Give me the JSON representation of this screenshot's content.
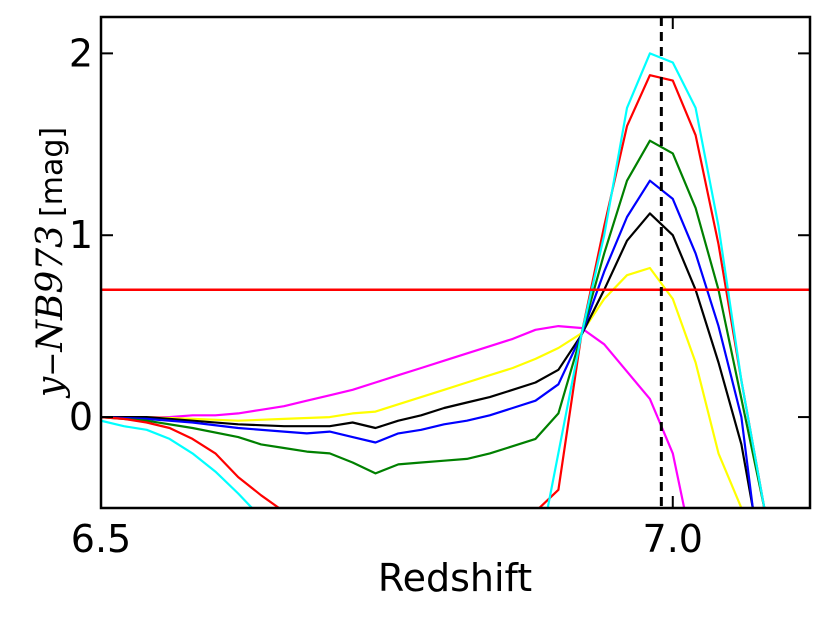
{
  "chart_data": {
    "type": "line",
    "xlabel": "Redshift",
    "ylabel": {
      "var": "y",
      "minus": "−",
      "band": "NB973",
      "unit": "[mag]"
    },
    "xlim": [
      6.5,
      7.12
    ],
    "ylim": [
      -0.5,
      2.2
    ],
    "xticks": [
      6.5,
      7.0
    ],
    "xtick_labels": [
      "6.5",
      "7.0"
    ],
    "yticks": [
      0,
      1,
      2
    ],
    "ytick_labels": [
      "0",
      "1",
      "2"
    ],
    "grid": false,
    "legend": "none",
    "hline": {
      "y": 0.7,
      "color": "#ff0000"
    },
    "vline": {
      "x": 6.99,
      "color": "#000000",
      "style": "dashed"
    },
    "series": [
      {
        "color": "#ff00ff",
        "x": [
          6.5,
          6.52,
          6.54,
          6.56,
          6.58,
          6.6,
          6.62,
          6.64,
          6.66,
          6.68,
          6.7,
          6.72,
          6.74,
          6.76,
          6.78,
          6.8,
          6.82,
          6.84,
          6.86,
          6.88,
          6.9,
          6.92,
          6.94,
          6.96,
          6.98,
          7.0,
          7.01
        ],
        "y": [
          0.0,
          0.0,
          0.0,
          0.0,
          0.01,
          0.01,
          0.02,
          0.04,
          0.06,
          0.09,
          0.12,
          0.15,
          0.19,
          0.23,
          0.27,
          0.31,
          0.35,
          0.39,
          0.43,
          0.48,
          0.5,
          0.49,
          0.4,
          0.25,
          0.1,
          -0.2,
          -0.5
        ]
      },
      {
        "color": "#ffff00",
        "x": [
          6.5,
          6.54,
          6.58,
          6.62,
          6.66,
          6.7,
          6.72,
          6.74,
          6.76,
          6.78,
          6.8,
          6.82,
          6.84,
          6.86,
          6.88,
          6.9,
          6.92,
          6.94,
          6.96,
          6.98,
          7.0,
          7.02,
          7.04,
          7.06
        ],
        "y": [
          0.0,
          0.0,
          -0.01,
          -0.02,
          -0.01,
          0.0,
          0.02,
          0.03,
          0.07,
          0.11,
          0.15,
          0.19,
          0.23,
          0.27,
          0.32,
          0.38,
          0.46,
          0.65,
          0.78,
          0.82,
          0.65,
          0.3,
          -0.2,
          -0.5
        ]
      },
      {
        "color": "#000000",
        "x": [
          6.5,
          6.54,
          6.58,
          6.62,
          6.66,
          6.7,
          6.72,
          6.74,
          6.76,
          6.78,
          6.8,
          6.82,
          6.84,
          6.86,
          6.88,
          6.9,
          6.92,
          6.94,
          6.96,
          6.98,
          7.0,
          7.02,
          7.04,
          7.06,
          7.07
        ],
        "y": [
          0.0,
          0.0,
          -0.02,
          -0.04,
          -0.05,
          -0.05,
          -0.03,
          -0.06,
          -0.02,
          0.01,
          0.05,
          0.08,
          0.11,
          0.15,
          0.19,
          0.26,
          0.45,
          0.7,
          0.97,
          1.12,
          1.0,
          0.7,
          0.3,
          -0.15,
          -0.5
        ]
      },
      {
        "color": "#0000ff",
        "x": [
          6.5,
          6.54,
          6.58,
          6.62,
          6.66,
          6.68,
          6.7,
          6.72,
          6.74,
          6.76,
          6.78,
          6.8,
          6.82,
          6.84,
          6.86,
          6.88,
          6.9,
          6.92,
          6.94,
          6.96,
          6.98,
          7.0,
          7.02,
          7.04,
          7.06,
          7.07
        ],
        "y": [
          0.0,
          -0.01,
          -0.03,
          -0.06,
          -0.08,
          -0.09,
          -0.08,
          -0.11,
          -0.14,
          -0.09,
          -0.07,
          -0.04,
          -0.02,
          0.01,
          0.05,
          0.09,
          0.18,
          0.45,
          0.8,
          1.1,
          1.3,
          1.2,
          0.9,
          0.5,
          0.0,
          -0.5
        ]
      },
      {
        "color": "#008000",
        "x": [
          6.5,
          6.54,
          6.58,
          6.62,
          6.64,
          6.66,
          6.68,
          6.7,
          6.72,
          6.74,
          6.76,
          6.78,
          6.8,
          6.82,
          6.84,
          6.86,
          6.88,
          6.9,
          6.92,
          6.94,
          6.96,
          6.98,
          7.0,
          7.02,
          7.04,
          7.06,
          7.08
        ],
        "y": [
          0.0,
          -0.02,
          -0.06,
          -0.11,
          -0.15,
          -0.17,
          -0.19,
          -0.2,
          -0.25,
          -0.31,
          -0.26,
          -0.25,
          -0.24,
          -0.23,
          -0.2,
          -0.16,
          -0.12,
          0.02,
          0.45,
          0.9,
          1.3,
          1.52,
          1.45,
          1.15,
          0.7,
          0.1,
          -0.5
        ]
      },
      {
        "color": "#ff0000",
        "x": [
          6.5,
          6.52,
          6.54,
          6.56,
          6.58,
          6.6,
          6.62,
          6.64,
          6.66,
          6.88,
          6.9,
          6.92,
          6.94,
          6.96,
          6.98,
          7.0,
          7.02,
          7.04,
          7.06,
          7.08
        ],
        "y": [
          0.0,
          -0.01,
          -0.03,
          -0.06,
          -0.12,
          -0.2,
          -0.33,
          -0.43,
          -0.52,
          -0.52,
          -0.4,
          0.45,
          1.05,
          1.6,
          1.88,
          1.85,
          1.55,
          0.95,
          0.2,
          -0.5
        ]
      },
      {
        "color": "#00ffff",
        "x": [
          6.5,
          6.52,
          6.54,
          6.56,
          6.58,
          6.6,
          6.62,
          6.635,
          6.89,
          6.92,
          6.94,
          6.96,
          6.98,
          7.0,
          7.02,
          7.04,
          7.06,
          7.08
        ],
        "y": [
          -0.02,
          -0.05,
          -0.07,
          -0.12,
          -0.2,
          -0.3,
          -0.42,
          -0.52,
          -0.52,
          0.45,
          1.0,
          1.7,
          2.0,
          1.95,
          1.7,
          1.05,
          0.2,
          -0.5
        ]
      }
    ]
  }
}
